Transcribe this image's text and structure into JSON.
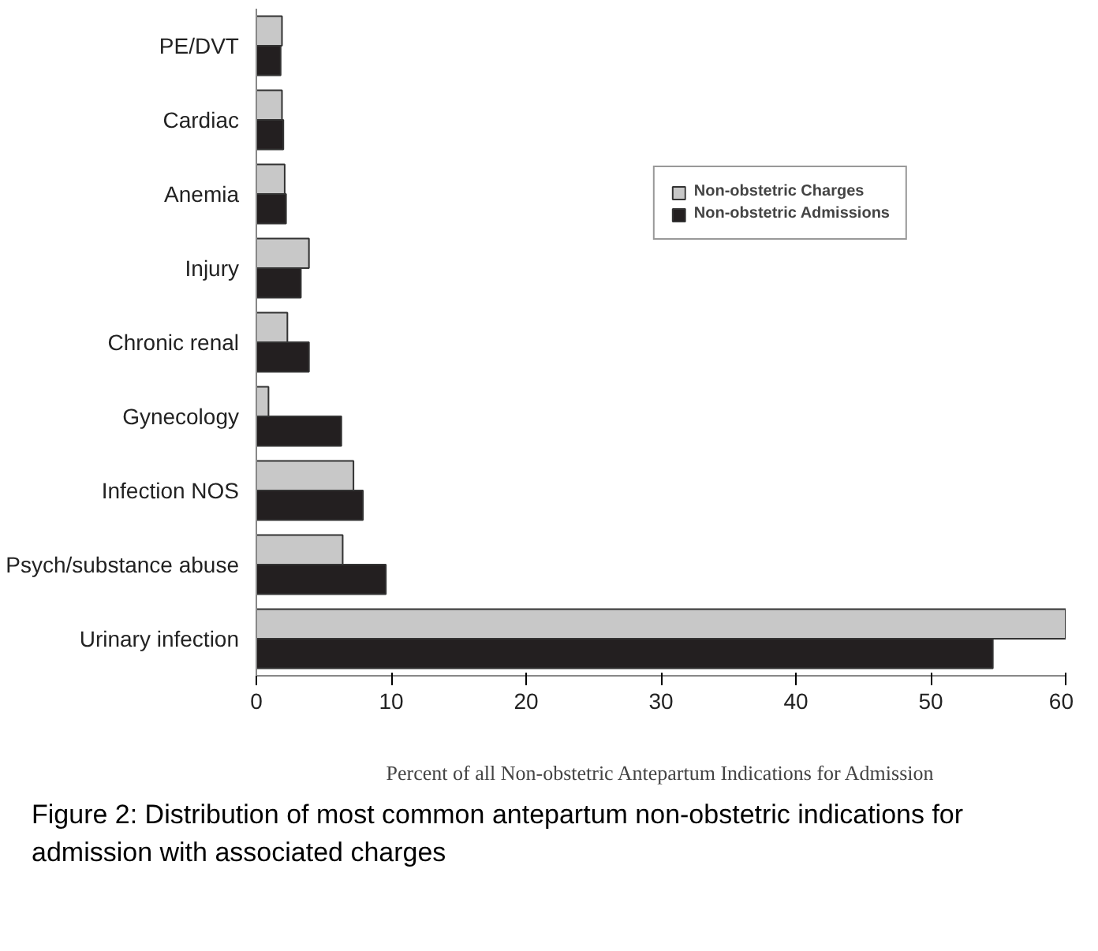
{
  "chart_data": {
    "type": "bar",
    "orientation": "horizontal",
    "categories": [
      "PE/DVT",
      "Cardiac",
      "Anemia",
      "Injury",
      "Chronic renal",
      "Gynecology",
      "Infection NOS",
      "Psych/substance abuse",
      "Urinary infection"
    ],
    "series": [
      {
        "name": "Non-obstetric Charges",
        "color": "#c8c8c8",
        "values": [
          1.9,
          1.9,
          2.1,
          3.9,
          2.3,
          0.9,
          7.2,
          6.4,
          60
        ]
      },
      {
        "name": "Non-obstetric Admissions",
        "color": "#231f20",
        "values": [
          1.8,
          2.0,
          2.2,
          3.3,
          3.9,
          6.3,
          7.9,
          9.6,
          54.6
        ]
      }
    ],
    "xlim": [
      0,
      60
    ],
    "xticks": [
      0,
      10,
      20,
      30,
      40,
      50,
      60
    ],
    "xlabel": "Percent of all Non-obstetric Antepartum Indications for Admission",
    "legend": "top right",
    "grid": false,
    "annotations": [
      "Figure 2: Distribution of most common antepartum non-obstetric indications for admission with associated charges"
    ]
  }
}
